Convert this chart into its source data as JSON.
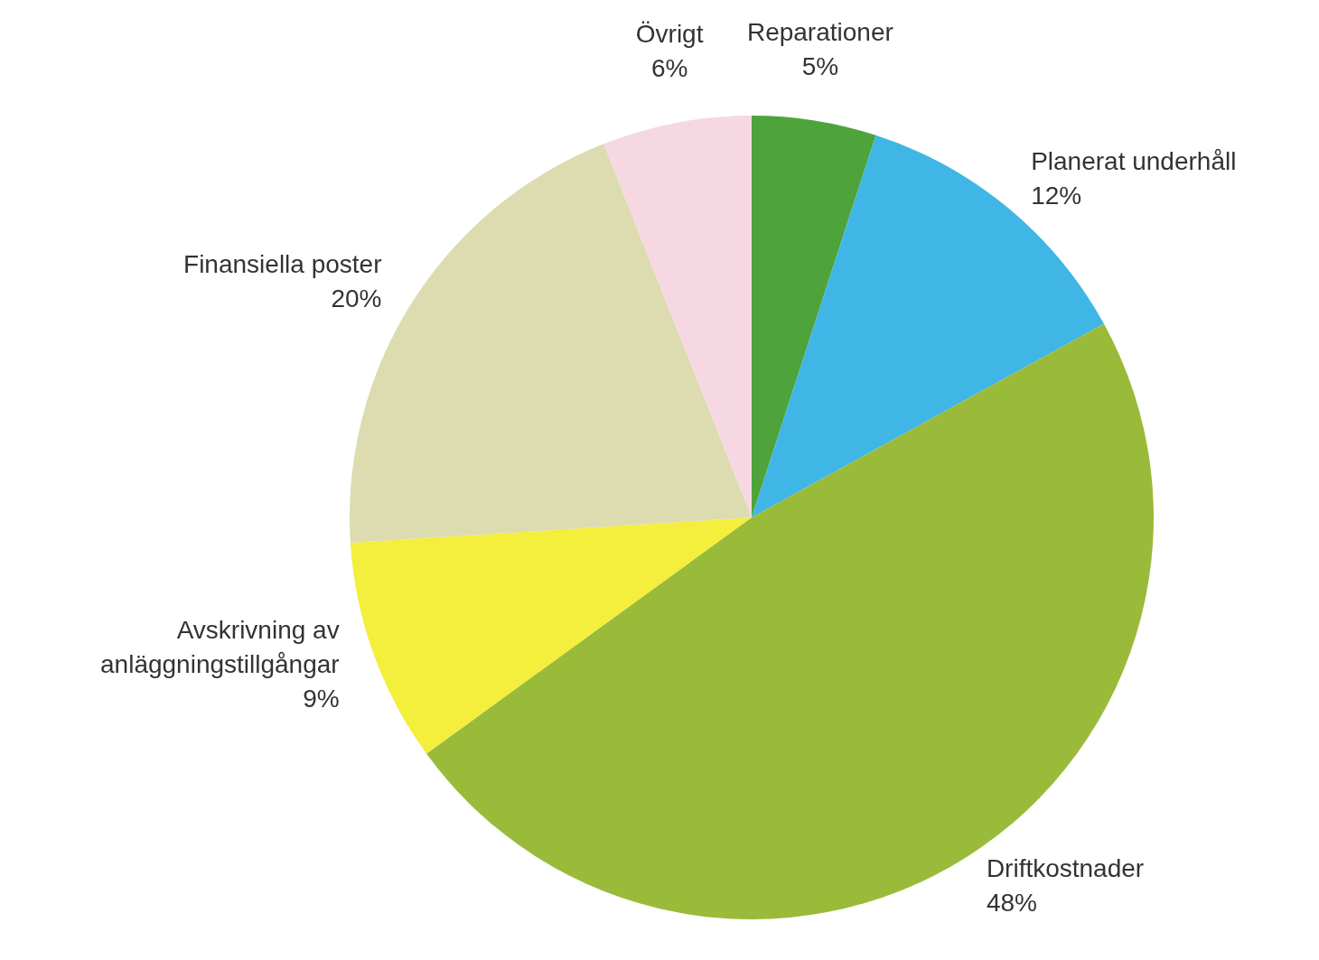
{
  "chart_data": {
    "type": "pie",
    "categories": [
      "Reparationer",
      "Planerat underhåll",
      "Driftkostnader",
      "Avskrivning av anläggningstillgångar",
      "Finansiella poster",
      "Övrigt"
    ],
    "values": [
      5,
      12,
      48,
      9,
      20,
      6
    ],
    "value_labels": [
      "5%",
      "12%",
      "48%",
      "9%",
      "20%",
      "6%"
    ],
    "colors": [
      "#4ea43a",
      "#3fb6e6",
      "#9abb3a",
      "#f4ee3c",
      "#dcdcb0",
      "#f5d8e2"
    ],
    "legend": false
  }
}
